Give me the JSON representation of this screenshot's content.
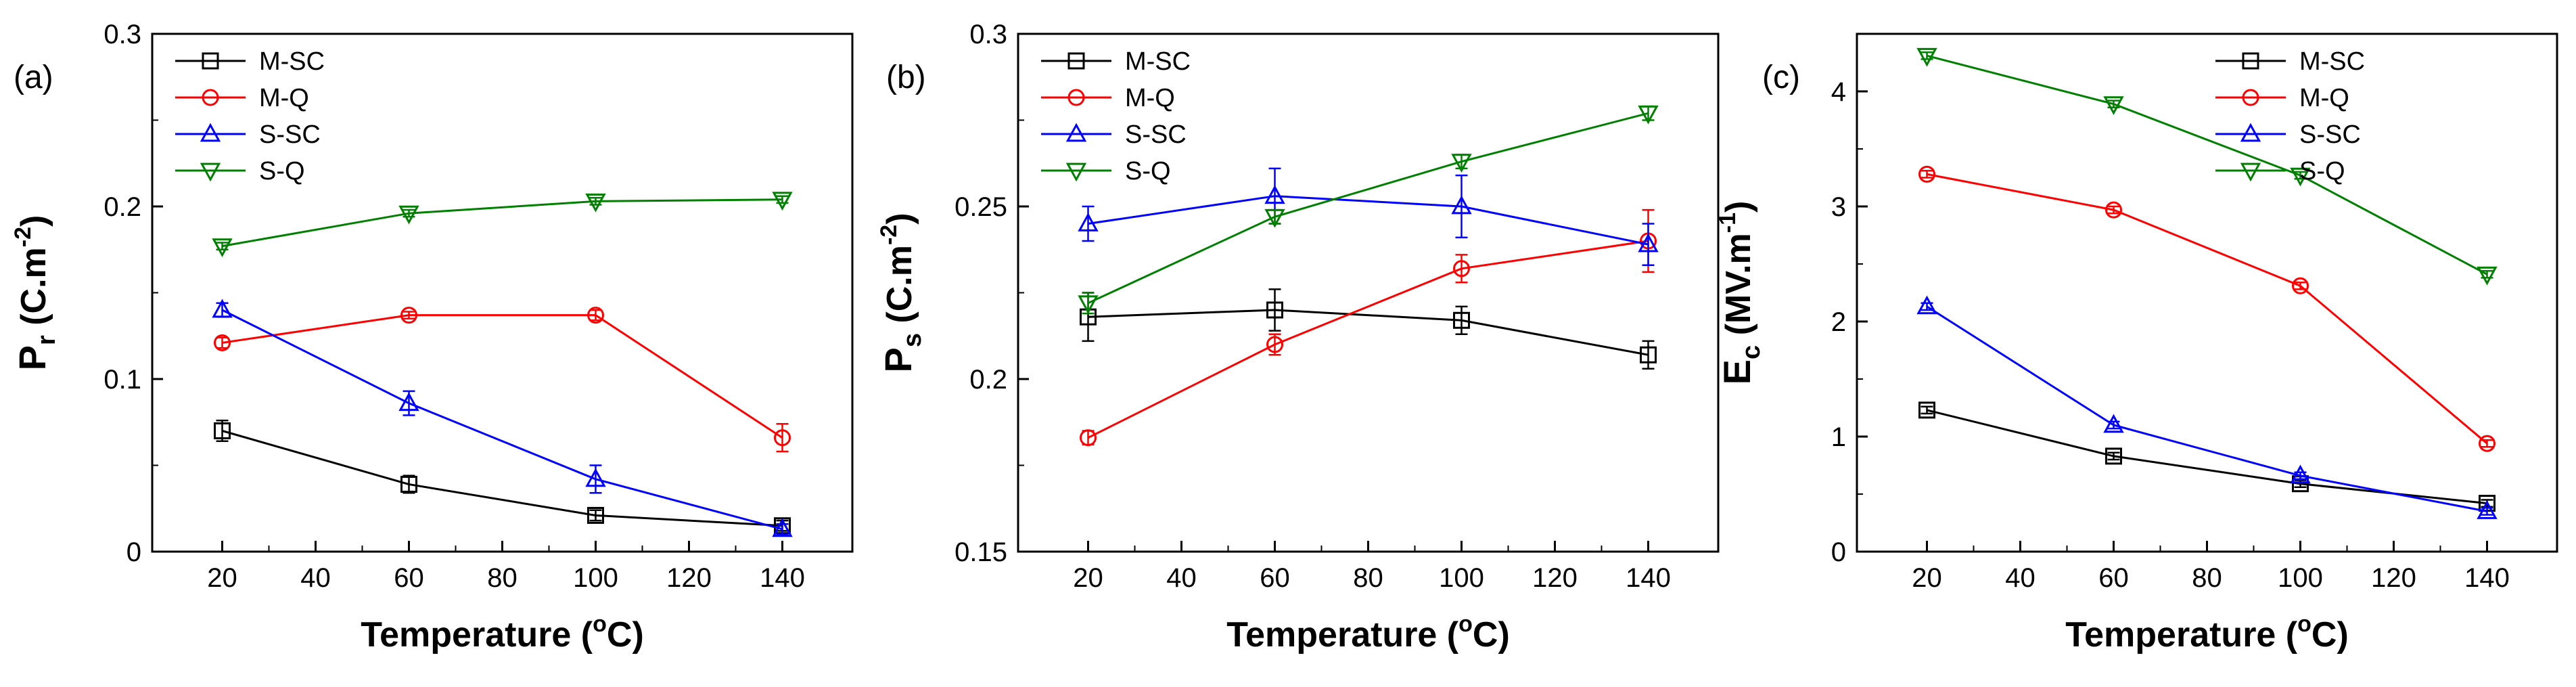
{
  "chart_data": [
    {
      "type": "line",
      "panel_label": "(a)",
      "xlabel": "Temperature (°C)",
      "xlabel_parts": {
        "pre": "Temperature (",
        "sup": "o",
        "post": "C)"
      },
      "ylabel": "Pr (C.m-2)",
      "ylabel_parts": {
        "main": "P",
        "sub": "r",
        "unit": " (C.m",
        "sup": "-2",
        "close": ")"
      },
      "x": [
        20,
        60,
        100,
        140
      ],
      "xlim": [
        5,
        155
      ],
      "ylim": [
        0,
        0.3
      ],
      "xticks": [
        20,
        40,
        60,
        80,
        100,
        120,
        140
      ],
      "yticks": [
        0,
        0.1,
        0.2,
        0.3
      ],
      "ytick_labels": [
        "0",
        "0.1",
        "0.2",
        "0.3"
      ],
      "legend_position": "top-left",
      "series": [
        {
          "name": "M-SC",
          "marker": "square",
          "color": "#000000",
          "values": [
            0.07,
            0.039,
            0.021,
            0.015
          ],
          "errors": [
            0.006,
            0.005,
            0.003,
            0.003
          ]
        },
        {
          "name": "M-Q",
          "marker": "circle",
          "color": "#ff0000",
          "values": [
            0.121,
            0.137,
            0.137,
            0.066
          ],
          "errors": [
            0.003,
            0.002,
            0.003,
            0.008
          ]
        },
        {
          "name": "S-SC",
          "marker": "triangle-up",
          "color": "#0000ff",
          "values": [
            0.14,
            0.086,
            0.042,
            0.013
          ],
          "errors": [
            0.004,
            0.007,
            0.008,
            0.003
          ]
        },
        {
          "name": "S-Q",
          "marker": "triangle-down",
          "color": "#008000",
          "values": [
            0.177,
            0.196,
            0.203,
            0.204
          ],
          "errors": [
            0.002,
            0.002,
            0.002,
            0.002
          ]
        }
      ]
    },
    {
      "type": "line",
      "panel_label": "(b)",
      "xlabel": "Temperature (°C)",
      "xlabel_parts": {
        "pre": "Temperature (",
        "sup": "o",
        "post": "C)"
      },
      "ylabel": "Ps (C.m-2)",
      "ylabel_parts": {
        "main": "P",
        "sub": "s",
        "unit": " (C.m",
        "sup": "-2",
        "close": ")"
      },
      "x": [
        20,
        60,
        100,
        140
      ],
      "xlim": [
        5,
        155
      ],
      "ylim": [
        0.15,
        0.3
      ],
      "xticks": [
        20,
        40,
        60,
        80,
        100,
        120,
        140
      ],
      "yticks": [
        0.15,
        0.2,
        0.25,
        0.3
      ],
      "ytick_labels": [
        "0.15",
        "0.2",
        "0.25",
        "0.3"
      ],
      "legend_position": "top-left",
      "series": [
        {
          "name": "M-SC",
          "marker": "square",
          "color": "#000000",
          "values": [
            0.218,
            0.22,
            0.217,
            0.207
          ],
          "errors": [
            0.007,
            0.006,
            0.004,
            0.004
          ]
        },
        {
          "name": "M-Q",
          "marker": "circle",
          "color": "#ff0000",
          "values": [
            0.183,
            0.21,
            0.232,
            0.24
          ],
          "errors": [
            0.002,
            0.003,
            0.004,
            0.009
          ]
        },
        {
          "name": "S-SC",
          "marker": "triangle-up",
          "color": "#0000ff",
          "values": [
            0.245,
            0.253,
            0.25,
            0.239
          ],
          "errors": [
            0.005,
            0.008,
            0.009,
            0.006
          ]
        },
        {
          "name": "S-Q",
          "marker": "triangle-down",
          "color": "#008000",
          "values": [
            0.222,
            0.247,
            0.263,
            0.277
          ],
          "errors": [
            0.003,
            0.002,
            0.002,
            0.002
          ]
        }
      ]
    },
    {
      "type": "line",
      "panel_label": "(c)",
      "xlabel": "Temperature (°C)",
      "xlabel_parts": {
        "pre": "Temperature (",
        "sup": "o",
        "post": "C)"
      },
      "ylabel": "Ec (MV.m-1)",
      "ylabel_parts": {
        "main": "E",
        "sub": "c",
        "unit": " (MV.m",
        "sup": "-1",
        "close": ")"
      },
      "x": [
        20,
        60,
        100,
        140
      ],
      "xlim": [
        5,
        155
      ],
      "ylim": [
        0,
        4.5
      ],
      "xticks": [
        20,
        40,
        60,
        80,
        100,
        120,
        140
      ],
      "yticks": [
        0,
        1,
        2,
        3,
        4
      ],
      "ytick_labels": [
        "0",
        "1",
        "2",
        "3",
        "4"
      ],
      "legend_position": "top-right",
      "series": [
        {
          "name": "M-SC",
          "marker": "square",
          "color": "#000000",
          "values": [
            1.23,
            0.83,
            0.59,
            0.42
          ],
          "errors": [
            0.03,
            0.03,
            0.03,
            0.03
          ]
        },
        {
          "name": "M-Q",
          "marker": "circle",
          "color": "#ff0000",
          "values": [
            3.28,
            2.97,
            2.31,
            0.94
          ],
          "errors": [
            0.03,
            0.03,
            0.03,
            0.03
          ]
        },
        {
          "name": "S-SC",
          "marker": "triangle-up",
          "color": "#0000ff",
          "values": [
            2.13,
            1.1,
            0.66,
            0.35
          ],
          "errors": [
            0.03,
            0.03,
            0.03,
            0.03
          ]
        },
        {
          "name": "S-Q",
          "marker": "triangle-down",
          "color": "#008000",
          "values": [
            4.31,
            3.89,
            3.27,
            2.41
          ],
          "errors": [
            0.03,
            0.03,
            0.03,
            0.03
          ]
        }
      ]
    }
  ]
}
